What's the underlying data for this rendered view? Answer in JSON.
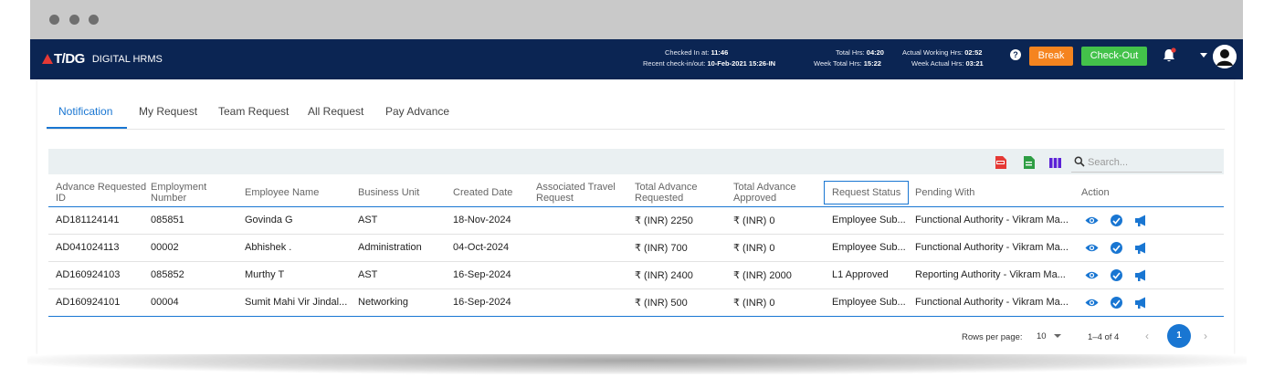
{
  "header": {
    "logo_text": "T/DG",
    "app_name": "DIGITAL HRMS",
    "checked_in_label": "Checked In at:",
    "checked_in_value": "11:46",
    "recent_label": "Recent check-in/out:",
    "recent_value": "10-Feb-2021 15:26-IN",
    "total_hrs_label": "Total Hrs:",
    "total_hrs_value": "04:20",
    "week_total_label": "Week Total Hrs:",
    "week_total_value": "15:22",
    "actual_label": "Actual Working Hrs:",
    "actual_value": "02:52",
    "week_actual_label": "Week Actual Hrs:",
    "week_actual_value": "03:21",
    "help_glyph": "?",
    "break_label": "Break",
    "checkout_label": "Check-Out"
  },
  "tabs": [
    {
      "label": "Notification",
      "active": true
    },
    {
      "label": "My Request",
      "active": false
    },
    {
      "label": "Team Request",
      "active": false
    },
    {
      "label": "All Request",
      "active": false
    },
    {
      "label": "Pay Advance",
      "active": false
    }
  ],
  "toolbar": {
    "icons": [
      "pdf-export-icon",
      "excel-export-icon",
      "columns-icon"
    ],
    "search_placeholder": "Search..."
  },
  "table": {
    "columns": [
      "Advance Requested ID",
      "Employment Number",
      "Employee Name",
      "Business Unit",
      "Created Date",
      "Associated Travel Request",
      "Total Advance Requested",
      "Total Advance Approved",
      "Request Status",
      "Pending With",
      "Action"
    ],
    "column_lines": {
      "c0": [
        "Advance Requested",
        "ID"
      ],
      "c1": [
        "Employment",
        "Number"
      ],
      "c5": [
        "Associated Travel",
        "Request"
      ],
      "c6": [
        "Total Advance",
        "Requested"
      ],
      "c7": [
        "Total Advance",
        "Approved"
      ]
    },
    "rows": [
      {
        "id": "AD181124141",
        "emp_no": "085851",
        "name": "Govinda G",
        "bu": "AST",
        "date": "18-Nov-2024",
        "travel": "",
        "requested": "₹ (INR) 2250",
        "approved": "₹ (INR) 0",
        "status": "Employee Sub...",
        "pending": "Functional Authority - Vikram Ma..."
      },
      {
        "id": "AD041024113",
        "emp_no": "00002",
        "name": "Abhishek .",
        "bu": "Administration",
        "date": "04-Oct-2024",
        "travel": "",
        "requested": "₹ (INR) 700",
        "approved": "₹ (INR) 0",
        "status": "Employee Sub...",
        "pending": "Functional Authority - Vikram Ma..."
      },
      {
        "id": "AD160924103",
        "emp_no": "085852",
        "name": "Murthy T",
        "bu": "AST",
        "date": "16-Sep-2024",
        "travel": "",
        "requested": "₹ (INR) 2400",
        "approved": "₹ (INR) 2000",
        "status": "L1 Approved",
        "pending": "Reporting Authority - Vikram Ma..."
      },
      {
        "id": "AD160924101",
        "emp_no": "00004",
        "name": "Sumit Mahi Vir Jindal...",
        "bu": "Networking",
        "date": "16-Sep-2024",
        "travel": "",
        "requested": "₹ (INR) 500",
        "approved": "₹ (INR) 0",
        "status": "Employee Sub...",
        "pending": "Functional Authority - Vikram Ma..."
      }
    ],
    "action_icons": [
      "view-icon",
      "approve-icon",
      "announce-icon"
    ]
  },
  "pagination": {
    "rows_label": "Rows per page:",
    "rows_value": "10",
    "range": "1–4 of 4",
    "current_page": "1"
  },
  "colors": {
    "navbar": "#0b2553",
    "accent": "#1976d2",
    "break": "#f5841f",
    "checkout": "#43c24a"
  }
}
